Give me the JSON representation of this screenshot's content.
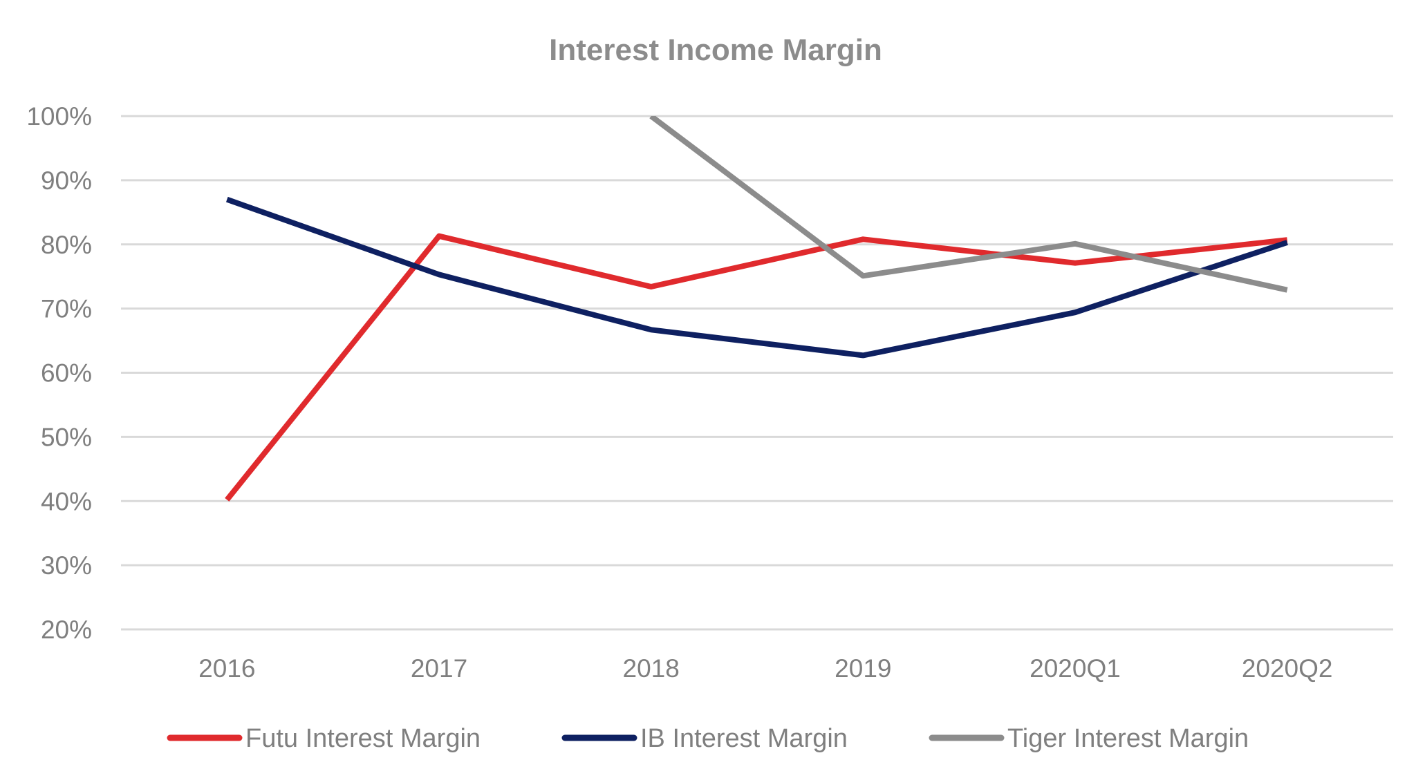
{
  "chart_data": {
    "type": "line",
    "title": "Interest Income Margin",
    "xlabel": "",
    "ylabel": "",
    "categories": [
      "2016",
      "2017",
      "2018",
      "2019",
      "2020Q1",
      "2020Q2"
    ],
    "ylim": [
      20,
      100
    ],
    "yticks": [
      20,
      30,
      40,
      50,
      60,
      70,
      80,
      90,
      100
    ],
    "ytick_labels": [
      "20%",
      "30%",
      "40%",
      "50%",
      "60%",
      "70%",
      "80%",
      "90%",
      "100%"
    ],
    "grid": true,
    "legend_position": "bottom",
    "series": [
      {
        "name": "Futu Interest Margin",
        "color": "#e02a2d",
        "values": [
          40.2,
          81.3,
          73.4,
          80.8,
          77.1,
          80.7
        ]
      },
      {
        "name": "IB Interest Margin",
        "color": "#0e2061",
        "values": [
          87.0,
          75.3,
          66.7,
          62.7,
          69.4,
          80.3
        ]
      },
      {
        "name": "Tiger Interest Margin",
        "color": "#8c8c8c",
        "values": [
          null,
          null,
          100.0,
          75.1,
          80.1,
          72.9
        ]
      }
    ]
  }
}
